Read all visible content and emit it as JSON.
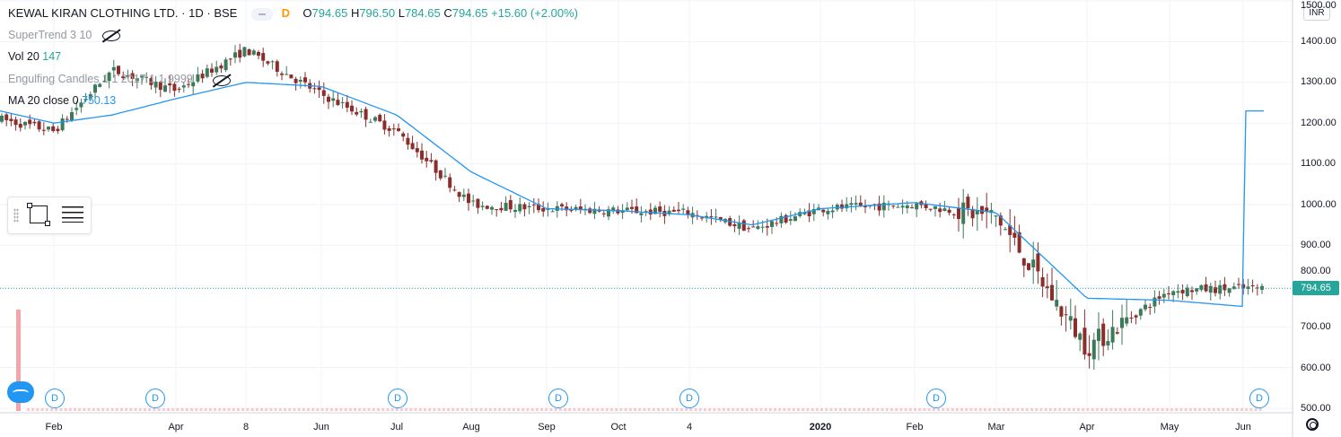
{
  "header": {
    "symbol": "KEWAL KIRAN CLOTHING LTD.",
    "sep1": "·",
    "interval": "1D",
    "sep2": "·",
    "exchange": "BSE",
    "d_badge": "D",
    "o_label": "O",
    "o_value": "794.65",
    "h_label": "H",
    "h_value": "796.50",
    "l_label": "L",
    "l_value": "784.65",
    "c_label": "C",
    "c_value": "794.65",
    "change": "+15.60 (+2.00%)"
  },
  "indicators": [
    {
      "name": "SuperTrend",
      "params": "3 10",
      "value": ""
    },
    {
      "name": "Vol",
      "params": "20",
      "value": "147"
    },
    {
      "name": "Engulfing Candles",
      "params": "1 1 2017 1 1 9999",
      "value": ""
    },
    {
      "name": "MA",
      "params": "20 close 0",
      "value": "750.13"
    }
  ],
  "price_axis": {
    "currency": "INR",
    "labels": [
      "1500.00",
      "1400.00",
      "1300.00",
      "1200.00",
      "1100.00",
      "1000.00",
      "900.00",
      "800.00",
      "700.00",
      "600.00",
      "500.00"
    ],
    "last_price": "794.65"
  },
  "time_axis": {
    "labels": [
      {
        "text": "Feb",
        "bold": false
      },
      {
        "text": "Apr",
        "bold": false
      },
      {
        "text": "8",
        "bold": false
      },
      {
        "text": "Jun",
        "bold": false
      },
      {
        "text": "Jul",
        "bold": false
      },
      {
        "text": "Aug",
        "bold": false
      },
      {
        "text": "Sep",
        "bold": false
      },
      {
        "text": "Oct",
        "bold": false
      },
      {
        "text": "4",
        "bold": false
      },
      {
        "text": "2020",
        "bold": true
      },
      {
        "text": "Feb",
        "bold": false
      },
      {
        "text": "Mar",
        "bold": false
      },
      {
        "text": "Apr",
        "bold": false
      },
      {
        "text": "May",
        "bold": false
      },
      {
        "text": "Jun",
        "bold": false
      }
    ]
  },
  "dividend_markers": [
    "D",
    "D",
    "D",
    "D",
    "D",
    "D",
    "D"
  ],
  "colors": {
    "up": "#26a69a",
    "down": "#ef5350",
    "up_candle_body": "#3d7a5c",
    "down_candle_body": "#8b2e2a",
    "ma": "#2196f3",
    "grid": "#f0f3fa",
    "volume": "#f4a6a6"
  },
  "chart_data": {
    "type": "candlestick",
    "ylim": [
      500,
      1500
    ],
    "x_range": [
      "2019-01",
      "2020-06"
    ],
    "price_series": {
      "name": "KEWAL KIRAN CLOTHING LTD.",
      "x": [
        "2019-01",
        "2019-02",
        "2019-03",
        "2019-04",
        "2019-05",
        "2019-06",
        "2019-07",
        "2019-08",
        "2019-09",
        "2019-10",
        "2019-11",
        "2019-12",
        "2020-01",
        "2020-02",
        "2020-03",
        "2020-04",
        "2020-05",
        "2020-06"
      ],
      "close": [
        1210,
        1180,
        1330,
        1280,
        1380,
        1270,
        1180,
        1000,
        990,
        985,
        980,
        940,
        990,
        1000,
        970,
        650,
        790,
        794.65
      ]
    },
    "ma_series": {
      "name": "MA 20 close 0",
      "x": [
        "2019-01",
        "2019-02",
        "2019-03",
        "2019-04",
        "2019-05",
        "2019-06",
        "2019-07",
        "2019-08",
        "2019-09",
        "2019-10",
        "2019-11",
        "2019-12",
        "2020-01",
        "2020-02",
        "2020-03",
        "2020-04",
        "2020-05",
        "2020-06"
      ],
      "y": [
        1230,
        1200,
        1220,
        1260,
        1300,
        1290,
        1220,
        1080,
        990,
        985,
        975,
        950,
        990,
        1005,
        980,
        770,
        765,
        750
      ]
    },
    "last": {
      "open": 794.65,
      "high": 796.5,
      "low": 784.65,
      "close": 794.65
    }
  }
}
